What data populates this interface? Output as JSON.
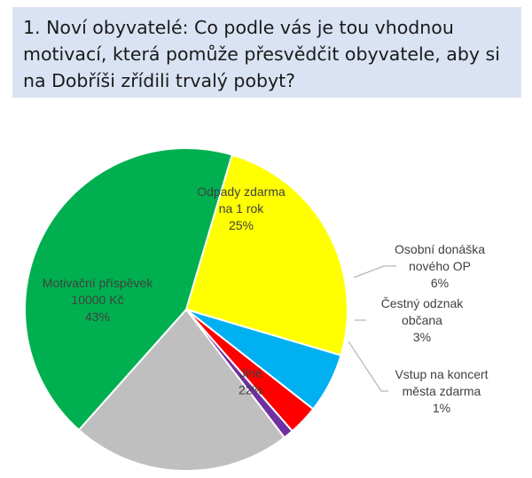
{
  "title": "1. Noví obyvatelé: Co podle vás je tou vhodnou motivací, která pomůže přesvědčit obyvatele, aby si na Dobříši zřídili trvalý pobyt?",
  "chart_data": {
    "type": "pie",
    "title": "1. Noví obyvatelé: Co podle vás je tou vhodnou motivací, která pomůže přesvědčit obyvatele, aby si na Dobříši zřídili trvalý pobyt?",
    "slices": [
      {
        "label_lines": [
          "Odpady zdarma",
          "na 1 rok"
        ],
        "value": 25,
        "pct_label": "25%",
        "color": "#ffff00"
      },
      {
        "label_lines": [
          "Osobní donáška",
          "nového OP"
        ],
        "value": 6,
        "pct_label": "6%",
        "color": "#00b0f0"
      },
      {
        "label_lines": [
          "Čestný odznak",
          "občana"
        ],
        "value": 3,
        "pct_label": "3%",
        "color": "#ff0000"
      },
      {
        "label_lines": [
          "Vstup na koncert",
          "města zdarma"
        ],
        "value": 1,
        "pct_label": "1%",
        "color": "#7030a0"
      },
      {
        "label_lines": [
          "Jiné"
        ],
        "value": 22,
        "pct_label": "22%",
        "color": "#bfbfbf"
      },
      {
        "label_lines": [
          "Motivační příspěvek",
          "10000 Kč"
        ],
        "value": 43,
        "pct_label": "43%",
        "color": "#00b050"
      }
    ],
    "start_angle_deg": 16.5,
    "direction": "clockwise"
  }
}
